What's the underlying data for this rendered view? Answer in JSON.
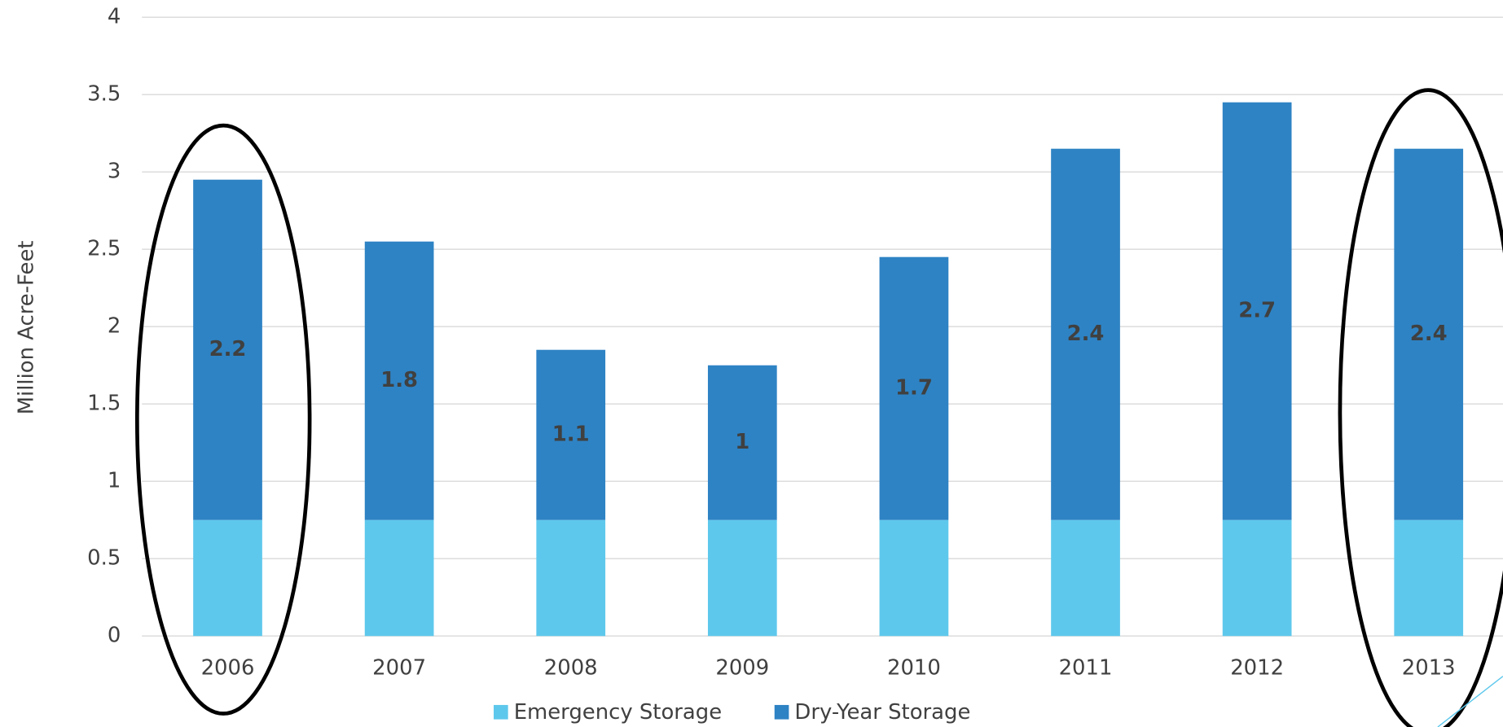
{
  "chart_data": {
    "type": "stacked-bar",
    "y_label": "Million Acre-Feet",
    "categories": [
      "2006",
      "2007",
      "2008",
      "2009",
      "2010",
      "2011",
      "2012",
      "2013"
    ],
    "series": [
      {
        "name": "Emergency Storage",
        "color": "#5ec8ec",
        "values": [
          0.75,
          0.75,
          0.75,
          0.75,
          0.75,
          0.75,
          0.75,
          0.75
        ]
      },
      {
        "name": "Dry-Year Storage",
        "color": "#2e83c4",
        "values": [
          2.2,
          1.8,
          1.1,
          1,
          1.7,
          2.4,
          2.7,
          2.4
        ],
        "show_labels": true
      }
    ],
    "ylim": [
      0,
      4
    ],
    "yticks": [
      0,
      0.5,
      1,
      1.5,
      2,
      2.5,
      3,
      3.5,
      4
    ],
    "grid": true
  }
}
